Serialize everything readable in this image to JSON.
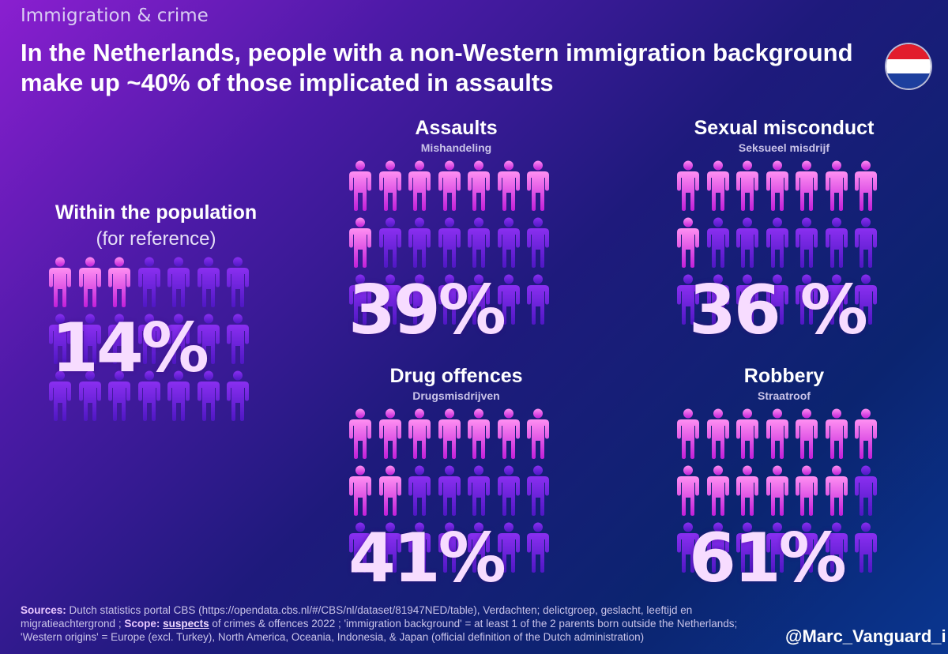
{
  "kicker": "Immigration & crime",
  "title": "In the Netherlands, people with a non-Western immigration background make up ~40% of those implicated in assaults",
  "colors": {
    "highlight_top": "#ff8ff2",
    "highlight_bottom": "#c21fd9",
    "base_top": "#8a2ff0",
    "base_bottom": "#4f17c4",
    "percent_text": "#f7dcff"
  },
  "chart_data": [
    {
      "type": "pictogram",
      "title": "Within the population",
      "subtitle": "(for reference)",
      "value_label": "14%",
      "value": 14,
      "icons_total": 21,
      "icons_highlighted": 3
    },
    {
      "type": "pictogram",
      "title": "Assaults",
      "subtitle": "Mishandeling",
      "value_label": "39%",
      "value": 39,
      "icons_total": 21,
      "icons_highlighted": 8
    },
    {
      "type": "pictogram",
      "title": "Sexual misconduct",
      "subtitle": "Seksueel misdrijf",
      "value_label": "36 %",
      "value": 36,
      "icons_total": 21,
      "icons_highlighted": 8
    },
    {
      "type": "pictogram",
      "title": "Drug offences",
      "subtitle": "Drugsmisdrijven",
      "value_label": "41%",
      "value": 41,
      "icons_total": 21,
      "icons_highlighted": 9
    },
    {
      "type": "pictogram",
      "title": "Robbery",
      "subtitle": "Straatroof",
      "value_label": "61%",
      "value": 61,
      "icons_total": 21,
      "icons_highlighted": 13
    }
  ],
  "sources": {
    "sources_label": "Sources:",
    "sources_text": " Dutch statistics portal CBS (https://opendata.cbs.nl/#/CBS/nl/dataset/81947NED/table), Verdachten; delictgroep, geslacht, leeftijd en migratieachtergrond ; ",
    "scope_label": "Scope:",
    "scope_keyword": "suspects",
    "scope_text": " of crimes & offences 2022 ; 'immigration background' = at least 1 of the 2 parents born outside the Netherlands; 'Western origins' = Europe (excl. Turkey), North America, Oceania, Indonesia, & Japan (official definition of the Dutch administration)"
  },
  "handle": "@Marc_Vanguard_i"
}
